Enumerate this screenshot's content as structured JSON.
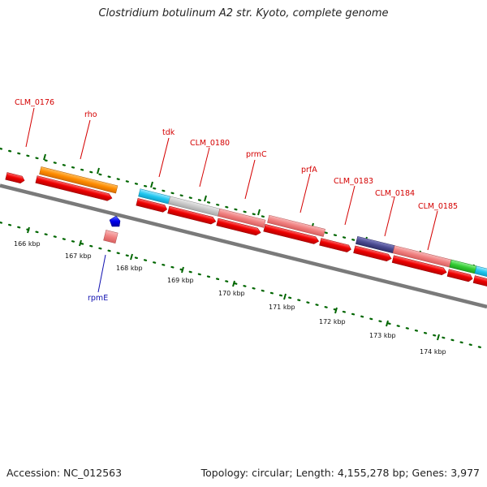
{
  "title": "Clostridium botulinum A2 str. Kyoto, complete genome",
  "footer": {
    "accession": "Accession: NC_012563",
    "topology": "Topology: circular; Length: 4,155,278 bp; Genes: 3,977"
  },
  "colors": {
    "cds_red": "#ee0000",
    "rna_pink": "#f08080",
    "orange": "#ff8c00",
    "cyan": "#22c8f0",
    "gray": "#c8c8c8",
    "navy": "#4a4a90",
    "green": "#33cc33",
    "blue_gene": "#0000ee",
    "tick_green": "#006600",
    "backbone": "#777777"
  },
  "gene_labels": [
    {
      "text": "CLM_0176",
      "color": "red"
    },
    {
      "text": "rho",
      "color": "red"
    },
    {
      "text": "tdk",
      "color": "red"
    },
    {
      "text": "CLM_0180",
      "color": "red"
    },
    {
      "text": "prmC",
      "color": "red"
    },
    {
      "text": "prfA",
      "color": "red"
    },
    {
      "text": "CLM_0183",
      "color": "red"
    },
    {
      "text": "CLM_0184",
      "color": "red"
    },
    {
      "text": "CLM_0185",
      "color": "red"
    },
    {
      "text": "rpmE",
      "color": "blue"
    }
  ],
  "kbp_labels": [
    "166 kbp",
    "167 kbp",
    "168 kbp",
    "169 kbp",
    "170 kbp",
    "171 kbp",
    "172 kbp",
    "173 kbp",
    "174 kbp"
  ]
}
